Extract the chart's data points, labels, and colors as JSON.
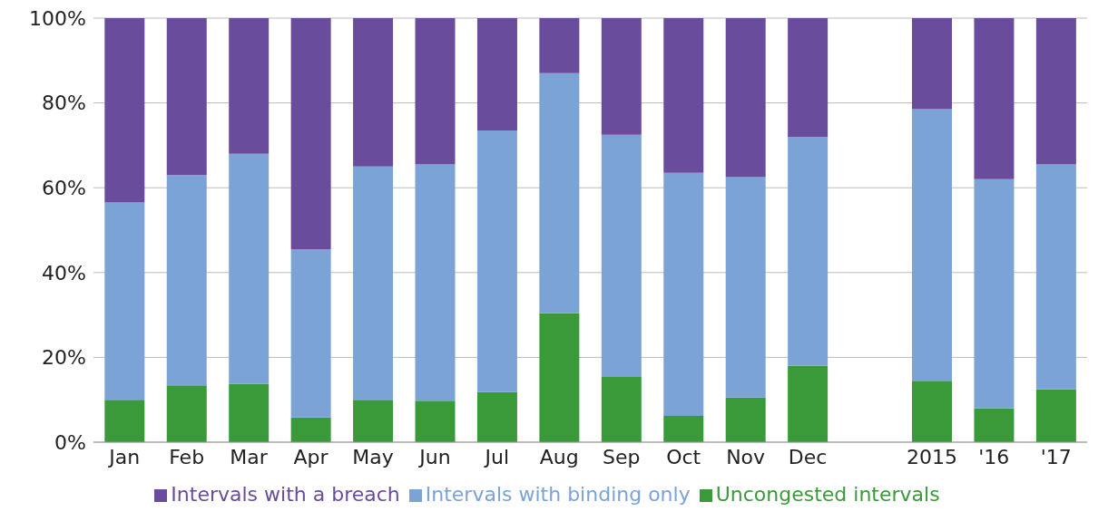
{
  "chart_data": {
    "type": "bar",
    "stacked": true,
    "categories": [
      "Jan",
      "Feb",
      "Mar",
      "Apr",
      "May",
      "Jun",
      "Jul",
      "Aug",
      "Sep",
      "Oct",
      "Nov",
      "Dec",
      null,
      "2015",
      "'16",
      "'17"
    ],
    "series": [
      {
        "name": "Uncongested intervals",
        "color": "#3a9a3a",
        "values": [
          10,
          13.4,
          13.8,
          5.8,
          10,
          9.8,
          11.8,
          30.4,
          15.4,
          6.2,
          10.5,
          18,
          null,
          14.5,
          8,
          12.5
        ]
      },
      {
        "name": "Intervals with binding only",
        "color": "#7ba3d6",
        "values": [
          46.5,
          49.6,
          54.2,
          39.7,
          55,
          55.7,
          61.7,
          56.6,
          57.1,
          57.3,
          52,
          54,
          null,
          64,
          54,
          53
        ]
      },
      {
        "name": "Intervals with a breach",
        "color": "#6a4c9c",
        "values": [
          43.5,
          37,
          32,
          54.5,
          35,
          34.5,
          26.5,
          13,
          27.5,
          36.5,
          37.5,
          28,
          null,
          21.5,
          38,
          34.5
        ]
      }
    ],
    "ylim": [
      0,
      100
    ],
    "yticks": [
      {
        "value": 0,
        "label": "0%"
      },
      {
        "value": 20,
        "label": "20%"
      },
      {
        "value": 40,
        "label": "40%"
      },
      {
        "value": 60,
        "label": "60%"
      },
      {
        "value": 80,
        "label": "80%"
      },
      {
        "value": 100,
        "label": "100%"
      }
    ],
    "grid": "y",
    "legend": "bottom"
  }
}
